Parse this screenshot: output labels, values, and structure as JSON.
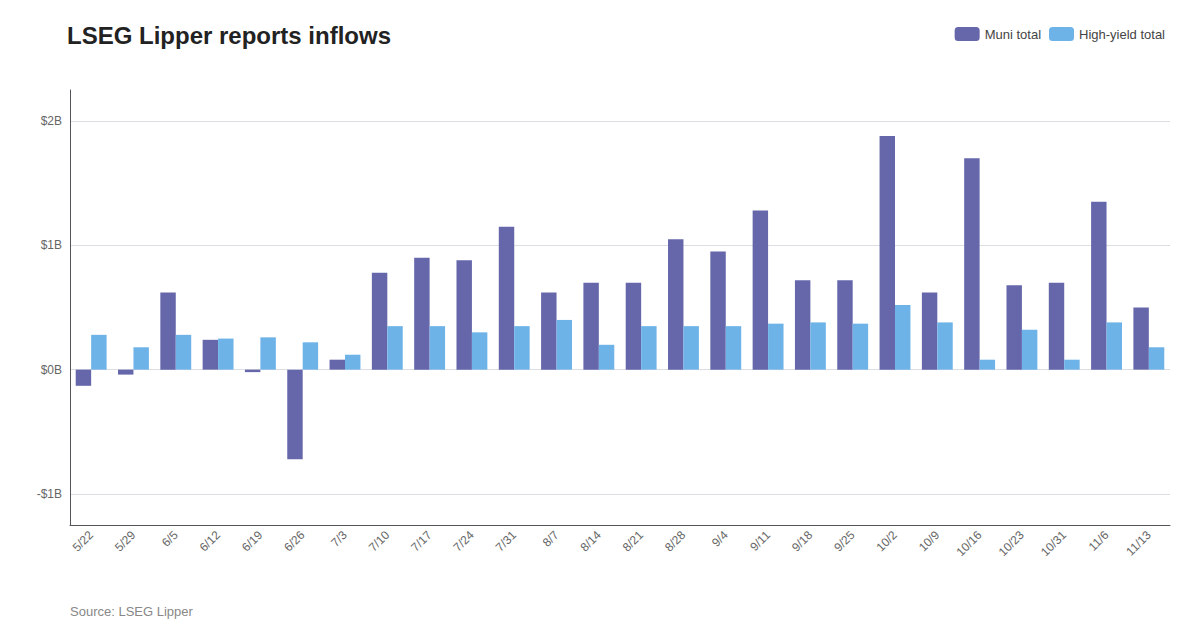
{
  "chart_data": {
    "type": "bar",
    "title": "LSEG Lipper reports inflows",
    "annotations": [
      "Source: LSEG Lipper"
    ],
    "categories": [
      "5/22",
      "5/29",
      "6/5",
      "6/12",
      "6/19",
      "6/26",
      "7/3",
      "7/10",
      "7/17",
      "7/24",
      "7/31",
      "8/7",
      "8/14",
      "8/21",
      "8/28",
      "9/4",
      "9/11",
      "9/18",
      "9/25",
      "10/2",
      "10/9",
      "10/16",
      "10/23",
      "10/31",
      "11/6",
      "11/13"
    ],
    "series": [
      {
        "name": "Muni total",
        "color": "#6667ab",
        "values": [
          -0.13,
          -0.04,
          0.62,
          0.24,
          -0.02,
          -0.72,
          0.08,
          0.78,
          0.9,
          0.88,
          1.15,
          0.62,
          0.7,
          0.7,
          1.05,
          0.95,
          1.28,
          0.72,
          0.72,
          1.88,
          0.62,
          1.7,
          0.68,
          0.7,
          1.35,
          0.5
        ]
      },
      {
        "name": "High-yield total",
        "color": "#6db3e8",
        "values": [
          0.28,
          0.18,
          0.28,
          0.25,
          0.26,
          0.22,
          0.12,
          0.35,
          0.35,
          0.3,
          0.35,
          0.4,
          0.2,
          0.35,
          0.35,
          0.35,
          0.37,
          0.38,
          0.37,
          0.52,
          0.38,
          0.08,
          0.32,
          0.08,
          0.38,
          0.18
        ]
      }
    ],
    "ylim": [
      -1.25,
      2.25
    ],
    "yticks": [
      {
        "value": -1.0,
        "label": "-$1B"
      },
      {
        "value": 0.0,
        "label": "$0B"
      },
      {
        "value": 1.0,
        "label": "$1B"
      },
      {
        "value": 2.0,
        "label": "$2B"
      }
    ],
    "grid": true,
    "legend": "upper right"
  }
}
